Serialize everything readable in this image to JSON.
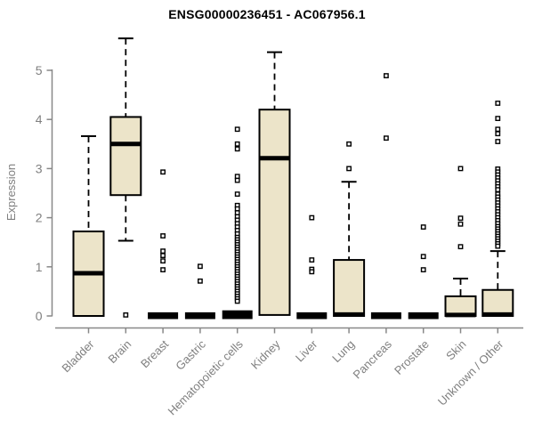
{
  "title": "ENSG00000236451 - AC067956.1",
  "colors": {
    "background": "#FFFFFF",
    "box_fill": "#ECE4C9",
    "box_stroke": "#000000",
    "median": "#000000",
    "whisker": "#000000",
    "axis": "#888888",
    "tick_label": "#7F7F7F",
    "title_text": "#000000"
  },
  "chart_data": {
    "type": "boxplot",
    "title": "ENSG00000236451 - AC067956.1",
    "xlabel": "",
    "ylabel": "Expression",
    "ylim": [
      0,
      5.7
    ],
    "yticks": [
      0,
      1,
      2,
      3,
      4,
      5
    ],
    "grid": false,
    "legend": null,
    "categories": [
      "Bladder",
      "Brain",
      "Breast",
      "Gastric",
      "Hematopoietic cells",
      "Kidney",
      "Liver",
      "Lung",
      "Pancreas",
      "Prostate",
      "Skin",
      "Unknown / Other"
    ],
    "series": [
      {
        "name": "Bladder",
        "q1": 0,
        "median": 0.87,
        "q3": 1.72,
        "whisker_low": 0,
        "whisker_high": 3.66,
        "outliers": []
      },
      {
        "name": "Brain",
        "q1": 2.46,
        "median": 3.5,
        "q3": 4.05,
        "whisker_low": 1.53,
        "whisker_high": 5.65,
        "outliers": [
          0.02
        ]
      },
      {
        "name": "Breast",
        "q1": 0,
        "median": 0,
        "q3": 0.02,
        "whisker_low": 0,
        "whisker_high": 0.02,
        "outliers": [
          2.93,
          1.63,
          1.32,
          1.23,
          1.12,
          0.94
        ]
      },
      {
        "name": "Gastric",
        "q1": 0,
        "median": 0,
        "q3": 0.02,
        "whisker_low": 0,
        "whisker_high": 0.02,
        "outliers": [
          1.01,
          0.71
        ]
      },
      {
        "name": "Hematopoietic cells",
        "q1": 0,
        "median": 0,
        "q3": 0.06,
        "whisker_low": 0,
        "whisker_high": 0.06,
        "outliers": [
          3.8,
          3.5,
          3.4,
          2.84,
          2.76,
          2.48,
          2.25,
          2.18,
          2.1,
          2.02,
          1.95,
          1.88,
          1.81,
          1.74,
          1.67,
          1.6,
          1.55,
          1.5,
          1.45,
          1.4,
          1.35,
          1.3,
          1.25,
          1.2,
          1.15,
          1.1,
          1.05,
          1.0,
          0.95,
          0.9,
          0.85,
          0.8,
          0.75,
          0.7,
          0.65,
          0.6,
          0.55,
          0.5,
          0.45,
          0.4,
          0.35,
          0.3
        ]
      },
      {
        "name": "Kidney",
        "q1": 0.02,
        "median": 3.21,
        "q3": 4.2,
        "whisker_low": 0.02,
        "whisker_high": 5.37,
        "outliers": []
      },
      {
        "name": "Liver",
        "q1": 0,
        "median": 0,
        "q3": 0.02,
        "whisker_low": 0,
        "whisker_high": 0.02,
        "outliers": [
          2.0,
          1.14,
          0.95,
          0.9
        ]
      },
      {
        "name": "Lung",
        "q1": 0,
        "median": 0.03,
        "q3": 1.14,
        "whisker_low": 0,
        "whisker_high": 2.73,
        "outliers": [
          3.5,
          3.0
        ]
      },
      {
        "name": "Pancreas",
        "q1": 0,
        "median": 0,
        "q3": 0.02,
        "whisker_low": 0,
        "whisker_high": 0.02,
        "outliers": [
          4.89,
          3.62
        ]
      },
      {
        "name": "Prostate",
        "q1": 0,
        "median": 0,
        "q3": 0.02,
        "whisker_low": 0,
        "whisker_high": 0.02,
        "outliers": [
          1.81,
          1.21,
          0.94
        ]
      },
      {
        "name": "Skin",
        "q1": 0,
        "median": 0.02,
        "q3": 0.4,
        "whisker_low": 0,
        "whisker_high": 0.76,
        "outliers": [
          3.0,
          1.99,
          1.87,
          1.41
        ]
      },
      {
        "name": "Unknown / Other",
        "q1": 0,
        "median": 0.03,
        "q3": 0.53,
        "whisker_low": 0,
        "whisker_high": 1.32,
        "outliers": [
          4.33,
          4.02,
          3.8,
          3.71,
          3.55,
          2.99,
          2.93,
          2.87,
          2.81,
          2.75,
          2.69,
          2.63,
          2.57,
          2.48,
          2.42,
          2.36,
          2.3,
          2.24,
          2.18,
          2.12,
          2.06,
          2.0,
          1.94,
          1.88,
          1.82,
          1.77,
          1.72,
          1.67,
          1.62,
          1.57,
          1.52,
          1.47,
          1.42
        ]
      }
    ]
  }
}
